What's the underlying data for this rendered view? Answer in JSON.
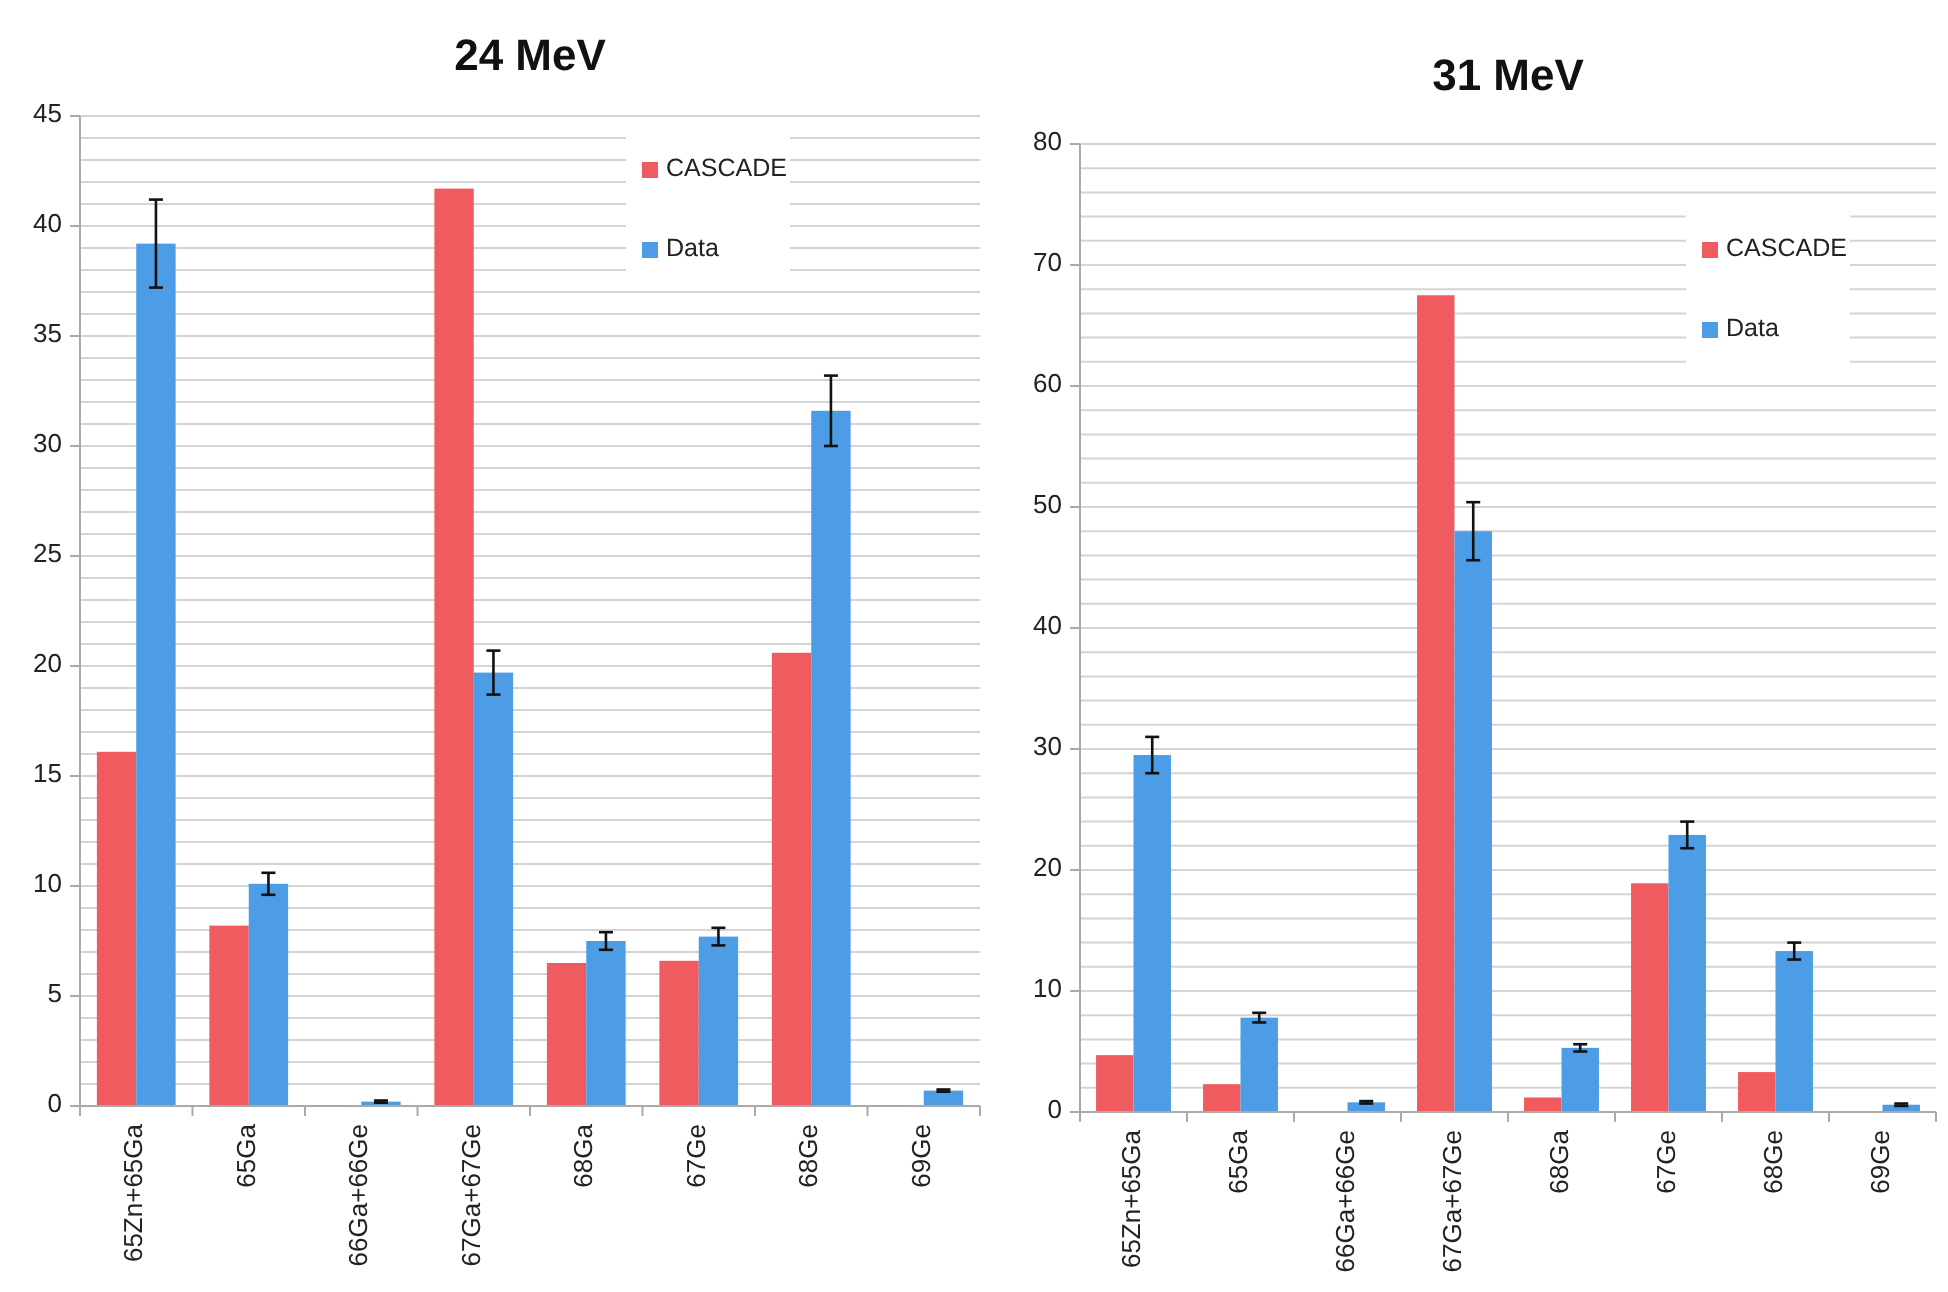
{
  "chart_data": [
    {
      "type": "bar",
      "title": "24 MeV",
      "categories": [
        "65Zn+65Ga",
        "65Ga",
        "66Ga+66Ge",
        "67Ga+67Ge",
        "68Ga",
        "67Ge",
        "68Ge",
        "69Ge"
      ],
      "series": [
        {
          "name": "CASCADE",
          "color": "#ef5b5e",
          "values": [
            16.1,
            8.2,
            0,
            41.7,
            6.5,
            6.6,
            20.6,
            0
          ]
        },
        {
          "name": "Data",
          "color": "#4c9de6",
          "values": [
            39.2,
            10.1,
            0.2,
            19.7,
            7.5,
            7.7,
            31.6,
            0.7
          ],
          "errors": [
            2.0,
            0.5,
            0.05,
            1.0,
            0.4,
            0.4,
            1.6,
            0.05
          ]
        }
      ],
      "ylim": [
        0,
        45
      ],
      "yticks": [
        0,
        {
          "value": 1,
          "label": null
        },
        {
          "value": 2,
          "label": null
        },
        {
          "value": 3,
          "label": null
        },
        {
          "value": 4,
          "label": null
        },
        5,
        {
          "value": 6,
          "label": null
        },
        {
          "value": 7,
          "label": null
        },
        {
          "value": 8,
          "label": null
        },
        {
          "value": 9,
          "label": null
        },
        10,
        {
          "value": 11,
          "label": null
        },
        {
          "value": 12,
          "label": null
        },
        {
          "value": 13,
          "label": null
        },
        {
          "value": 14,
          "label": null
        },
        15,
        {
          "value": 16,
          "label": null
        },
        {
          "value": 17,
          "label": null
        },
        {
          "value": 18,
          "label": null
        },
        {
          "value": 19,
          "label": null
        },
        20,
        {
          "value": 21,
          "label": null
        },
        {
          "value": 22,
          "label": null
        },
        {
          "value": 23,
          "label": null
        },
        {
          "value": 24,
          "label": null
        },
        25,
        {
          "value": 26,
          "label": null
        },
        {
          "value": 27,
          "label": null
        },
        {
          "value": 28,
          "label": null
        },
        {
          "value": 29,
          "label": null
        },
        30,
        {
          "value": 31,
          "label": null
        },
        {
          "value": 32,
          "label": null
        },
        {
          "value": 33,
          "label": null
        },
        {
          "value": 34,
          "label": null
        },
        35,
        {
          "value": 36,
          "label": null
        },
        {
          "value": 37,
          "label": null
        },
        {
          "value": 38,
          "label": null
        },
        {
          "value": 39,
          "label": null
        },
        40,
        {
          "value": 41,
          "label": null
        },
        {
          "value": 42,
          "label": null
        },
        {
          "value": 43,
          "label": null
        },
        {
          "value": 44,
          "label": null
        },
        45
      ],
      "grid": "y",
      "legend": "top right"
    },
    {
      "type": "bar",
      "title": "31 MeV",
      "categories": [
        "65Zn+65Ga",
        "65Ga",
        "66Ga+66Ge",
        "67Ga+67Ge",
        "68Ga",
        "67Ge",
        "68Ge",
        "69Ge"
      ],
      "series": [
        {
          "name": "CASCADE",
          "color": "#ef5b5e",
          "values": [
            4.7,
            2.3,
            0,
            67.5,
            1.2,
            18.9,
            3.3,
            0
          ]
        },
        {
          "name": "Data",
          "color": "#4c9de6",
          "values": [
            29.5,
            7.8,
            0.8,
            48.0,
            5.3,
            22.9,
            13.3,
            0.6
          ],
          "errors": [
            1.5,
            0.4,
            0.1,
            2.4,
            0.3,
            1.1,
            0.7,
            0.1
          ]
        }
      ],
      "ylim": [
        0,
        80
      ],
      "yticks": [
        0,
        {
          "value": 2,
          "label": null
        },
        {
          "value": 4,
          "label": null
        },
        {
          "value": 6,
          "label": null
        },
        {
          "value": 8,
          "label": null
        },
        10,
        {
          "value": 12,
          "label": null
        },
        {
          "value": 14,
          "label": null
        },
        {
          "value": 16,
          "label": null
        },
        {
          "value": 18,
          "label": null
        },
        20,
        {
          "value": 22,
          "label": null
        },
        {
          "value": 24,
          "label": null
        },
        {
          "value": 26,
          "label": null
        },
        {
          "value": 28,
          "label": null
        },
        30,
        {
          "value": 32,
          "label": null
        },
        {
          "value": 34,
          "label": null
        },
        {
          "value": 36,
          "label": null
        },
        {
          "value": 38,
          "label": null
        },
        40,
        {
          "value": 42,
          "label": null
        },
        {
          "value": 44,
          "label": null
        },
        {
          "value": 46,
          "label": null
        },
        {
          "value": 48,
          "label": null
        },
        50,
        {
          "value": 52,
          "label": null
        },
        {
          "value": 54,
          "label": null
        },
        {
          "value": 56,
          "label": null
        },
        {
          "value": 58,
          "label": null
        },
        60,
        {
          "value": 62,
          "label": null
        },
        {
          "value": 64,
          "label": null
        },
        {
          "value": 66,
          "label": null
        },
        {
          "value": 68,
          "label": null
        },
        70,
        {
          "value": 72,
          "label": null
        },
        {
          "value": 74,
          "label": null
        },
        {
          "value": 76,
          "label": null
        },
        {
          "value": 78,
          "label": null
        },
        80
      ],
      "grid": "y",
      "legend": "top right"
    }
  ]
}
